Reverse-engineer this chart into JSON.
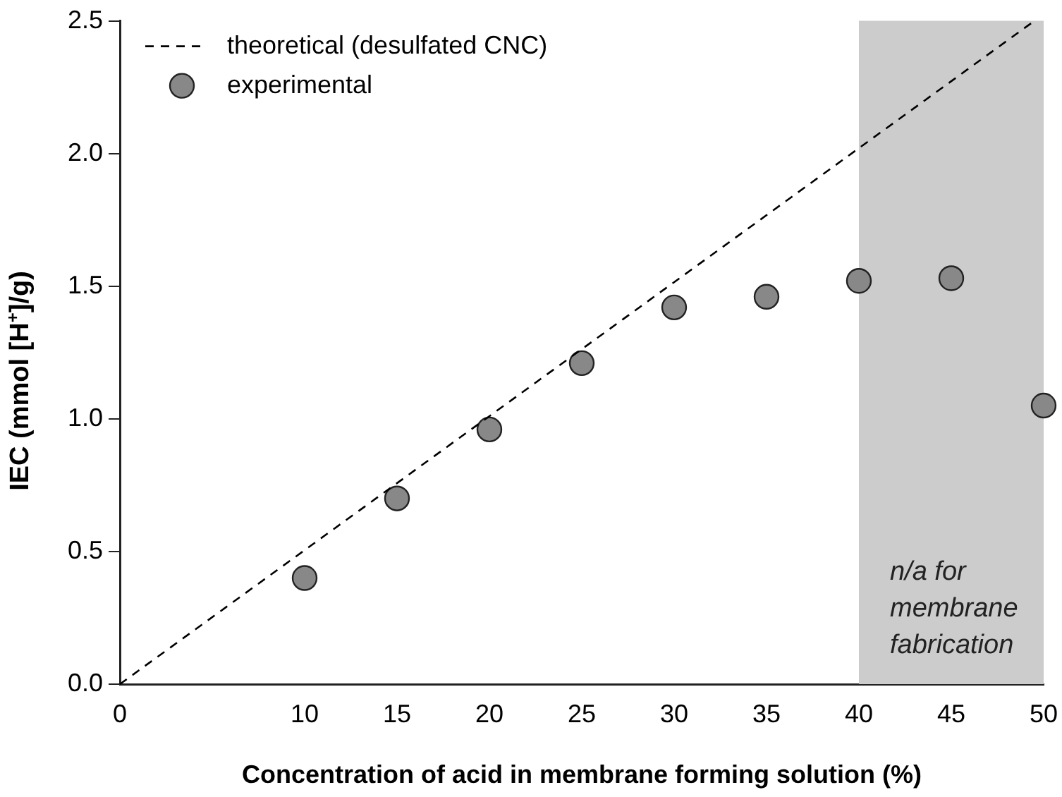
{
  "chart_data": {
    "type": "scatter",
    "xlabel": "Concentration of acid in membrane forming solution (%)",
    "ylabel": "IEC (mmol [H$^{+}$]/g)",
    "xlim": [
      0,
      50
    ],
    "xticks": [
      0,
      10,
      15,
      20,
      25,
      30,
      35,
      40,
      45,
      50
    ],
    "ylim": [
      0,
      2.5
    ],
    "yticks": [
      {
        "value": 0,
        "label": "0.0"
      },
      0.5,
      {
        "value": 1,
        "label": "1.0"
      },
      1.5,
      {
        "value": 2,
        "label": "2.0"
      },
      2.5
    ],
    "legend": "top left",
    "grid": false,
    "series": [
      {
        "name": "theoretical (desulfated CNC)",
        "type": "line",
        "line_style": "dashed",
        "marker": "none",
        "color": "#000000",
        "x": [
          0,
          49.5
        ],
        "values": [
          0,
          2.5
        ]
      },
      {
        "name": "experimental",
        "marker": "circle",
        "color": "#888888",
        "x": [
          10,
          15,
          20,
          25,
          30,
          35,
          40,
          45,
          50
        ],
        "values": [
          0.4,
          0.7,
          0.96,
          1.21,
          1.42,
          1.46,
          1.52,
          1.53,
          1.05
        ]
      }
    ],
    "bands": [
      {
        "axis": "x",
        "from": 40,
        "to": 50,
        "label": "n/a for membrane fabrication",
        "color": "#cccccc"
      }
    ]
  }
}
